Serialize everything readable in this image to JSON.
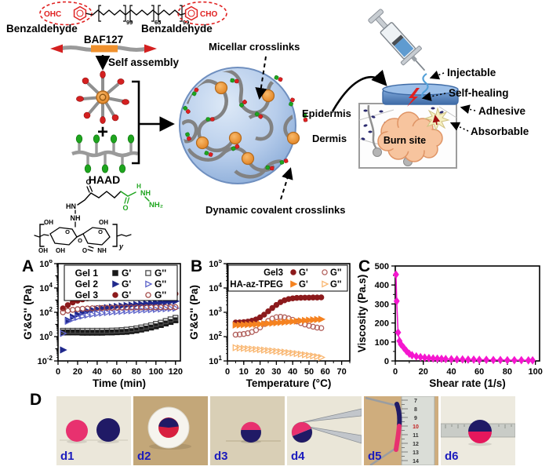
{
  "scheme": {
    "benzaldehyde_left": "Benzaldehyde",
    "benzaldehyde_right": "Benzaldehyde",
    "baf127": "BAF127",
    "self_assembly": "Self assembly",
    "plus": "+",
    "haad": "HAAD",
    "micellar_crosslinks": "Micellar crosslinks",
    "dynamic_covalent_crosslinks": "Dynamic covalent crosslinks",
    "epidermis": "Epidermis",
    "dermis": "Dermis",
    "burn_site": "Burn site",
    "injectable": "Injectable",
    "self_healing": "Self-healing",
    "adhesive": "Adhesive",
    "absorbable": "Absorbable",
    "chem": {
      "ohc": "OHC",
      "cho": "CHO",
      "sub1": "99",
      "sub2": "65",
      "sub3": "99",
      "hn": "HN",
      "nh": "NH",
      "nh2": "NH₂",
      "h": "H",
      "o": "O",
      "oh": "OH",
      "y": "y"
    }
  },
  "colors": {
    "red": "#e02020",
    "green": "#1ea51e",
    "orange_micelle": "#f0912d",
    "gel1": "#1a1a1a",
    "gel2": "#20298c",
    "gel3": "#8c1a1c",
    "orange_series": "#f58220",
    "magenta": "#f517cf",
    "photo_pink": "#e8316f",
    "photo_navy": "#201a66",
    "label_blue": "#1b1bbd"
  },
  "chart_data": [
    {
      "panel": "A",
      "type": "scatter",
      "xlabel": "Time (min)",
      "ylabel": "G'&G'' (Pa)",
      "xlim": [
        0,
        125
      ],
      "xticks": [
        0,
        20,
        40,
        60,
        80,
        100,
        120
      ],
      "xminor": 10,
      "ylog": true,
      "ylim": [
        0.01,
        1000000
      ],
      "ytick_exps": [
        -2,
        0,
        2,
        4,
        6
      ],
      "legend": {
        "g1": "G'",
        "g2": "G''",
        "rows": [
          {
            "label": "Gel 1",
            "s": [
              0,
              1
            ]
          },
          {
            "label": "Gel 2",
            "s": [
              2,
              3
            ]
          },
          {
            "label": "Gel 3",
            "s": [
              4,
              5
            ]
          }
        ]
      },
      "x": [
        5,
        10,
        15,
        20,
        25,
        30,
        35,
        40,
        45,
        50,
        55,
        60,
        65,
        70,
        75,
        80,
        85,
        90,
        95,
        100,
        105,
        110,
        115,
        120
      ],
      "series": [
        {
          "name": "Gel 1 G'",
          "marker": "square",
          "filled": true,
          "color": "#1a1a1a",
          "values": [
            2.2,
            2.2,
            2.2,
            2.2,
            2.1,
            2.1,
            2.1,
            2.1,
            2.1,
            2.2,
            2.2,
            2.3,
            2.4,
            2.5,
            2.8,
            3.2,
            3.8,
            4.6,
            5.6,
            7,
            9,
            12,
            16,
            22
          ]
        },
        {
          "name": "Gel 1 G''",
          "marker": "square",
          "filled": false,
          "color": "#4a4a4a",
          "values": [
            3,
            3,
            3,
            3,
            3,
            3,
            3,
            3,
            3,
            3,
            3.1,
            3.2,
            3.4,
            3.7,
            4.1,
            4.7,
            5.6,
            6.8,
            8.5,
            11,
            14,
            19,
            26,
            35
          ]
        },
        {
          "name": "Gel 2 G'",
          "marker": "tri",
          "filled": true,
          "color": "#20298c",
          "values": [
            0.08,
            22,
            42,
            65,
            95,
            125,
            155,
            185,
            215,
            245,
            275,
            305,
            335,
            365,
            395,
            430,
            465,
            500,
            540,
            585,
            635,
            690,
            750,
            820
          ]
        },
        {
          "name": "Gel 2 G''",
          "marker": "tri",
          "filled": false,
          "color": "#5a60c8",
          "values": [
            1.8,
            18,
            28,
            38,
            48,
            58,
            68,
            77,
            86,
            94,
            102,
            110,
            118,
            126,
            134,
            142,
            150,
            158,
            166,
            175,
            184,
            194,
            205,
            215
          ]
        },
        {
          "name": "Gel 3 G'",
          "marker": "circle",
          "filled": true,
          "color": "#8c1a1c",
          "values": [
            210,
            390,
            640,
            900,
            1150,
            1400,
            1650,
            1900,
            2100,
            2300,
            2450,
            2600,
            2700,
            2800,
            2900,
            2950,
            3000,
            3050,
            3100,
            3150,
            3200,
            3250,
            3300,
            3350
          ]
        },
        {
          "name": "Gel 3 G''",
          "marker": "circle",
          "filled": false,
          "color": "#a34b48",
          "values": [
            100,
            135,
            160,
            180,
            195,
            205,
            215,
            222,
            228,
            233,
            237,
            241,
            244,
            247,
            250,
            252,
            254,
            256,
            258,
            260,
            262,
            264,
            266,
            268
          ]
        }
      ]
    },
    {
      "panel": "B",
      "type": "scatter",
      "xlabel": "Temperature (°C)",
      "ylabel": "G'&G'' (Pa)",
      "xlim": [
        0,
        75
      ],
      "xticks": [
        0,
        10,
        20,
        30,
        40,
        50,
        60,
        70
      ],
      "xminor": 5,
      "ylog": true,
      "ylim": [
        10,
        100000
      ],
      "ytick_exps": [
        1,
        2,
        3,
        4,
        5
      ],
      "legend": {
        "g1": "G'",
        "g2": "G''",
        "rows": [
          {
            "label": "Gel3",
            "s": [
              0,
              1
            ]
          },
          {
            "label": "HA-az-TPEG",
            "s": [
              2,
              3
            ]
          }
        ]
      },
      "x": [
        5,
        7.5,
        10,
        12.5,
        15,
        17.5,
        20,
        22.5,
        25,
        27.5,
        30,
        32.5,
        35,
        37.5,
        40,
        42.5,
        45,
        47.5,
        50,
        52.5,
        55,
        57.5
      ],
      "series": [
        {
          "name": "Gel3 G'",
          "marker": "circle",
          "filled": true,
          "color": "#8c1a1c",
          "values": [
            380,
            385,
            395,
            415,
            450,
            510,
            620,
            800,
            1100,
            1500,
            2000,
            2600,
            3100,
            3500,
            3750,
            3900,
            3950,
            4000,
            4000,
            4050,
            4050,
            4100
          ]
        },
        {
          "name": "Gel3 G''",
          "marker": "circle",
          "filled": false,
          "color": "#b2625e",
          "values": [
            120,
            123,
            128,
            138,
            155,
            185,
            240,
            330,
            440,
            550,
            630,
            650,
            620,
            560,
            490,
            420,
            360,
            315,
            280,
            255,
            235,
            225
          ]
        },
        {
          "name": "HA-az-TPEG G'",
          "marker": "tri",
          "filled": true,
          "color": "#f58220",
          "values": [
            300,
            303,
            307,
            311,
            316,
            322,
            329,
            337,
            346,
            356,
            367,
            379,
            392,
            405,
            419,
            433,
            448,
            462,
            477,
            491,
            505,
            518
          ]
        },
        {
          "name": "HA-az-TPEG G''",
          "marker": "tri",
          "filled": false,
          "color": "#f9b670",
          "values": [
            35,
            34,
            33,
            32,
            31,
            30,
            29,
            28,
            27,
            26,
            25,
            24,
            23,
            22,
            21,
            20,
            19,
            18,
            17,
            16,
            15,
            14
          ]
        }
      ]
    },
    {
      "panel": "C",
      "type": "scatter",
      "xlabel": "Shear rate (1/s)",
      "ylabel": "Viscosity (Pa.s)",
      "xlim": [
        0,
        103
      ],
      "xticks": [
        0,
        20,
        40,
        60,
        80,
        100
      ],
      "xminor": 10,
      "ylog": false,
      "ylim": [
        0,
        500
      ],
      "yticks": [
        0,
        100,
        200,
        300,
        400,
        500
      ],
      "yminor": 50,
      "x": [
        0.5,
        1,
        2,
        3,
        4,
        6,
        8,
        10,
        12,
        15,
        18,
        21,
        24,
        27,
        30,
        33,
        36,
        40,
        44,
        48,
        52,
        56,
        60,
        65,
        70,
        75,
        80,
        85,
        90,
        95,
        98
      ],
      "series": [
        {
          "name": "Viscosity",
          "marker": "diamond",
          "filled": true,
          "color": "#f517cf",
          "line": true,
          "values": [
            455,
            315,
            150,
            105,
            88,
            70,
            52,
            38,
            30,
            24,
            20,
            17,
            15,
            13,
            12,
            11,
            10,
            9,
            8,
            8,
            7,
            7,
            6,
            6,
            5,
            5,
            4,
            4,
            4,
            3,
            3
          ]
        }
      ]
    }
  ],
  "panel_d": {
    "label": "D",
    "photos": [
      {
        "label": "d1"
      },
      {
        "label": "d2"
      },
      {
        "label": "d3"
      },
      {
        "label": "d4"
      },
      {
        "label": "d5",
        "ruler_numbers": [
          "7",
          "8",
          "9",
          "10",
          "11",
          "12",
          "13",
          "14"
        ]
      },
      {
        "label": "d6"
      }
    ]
  }
}
